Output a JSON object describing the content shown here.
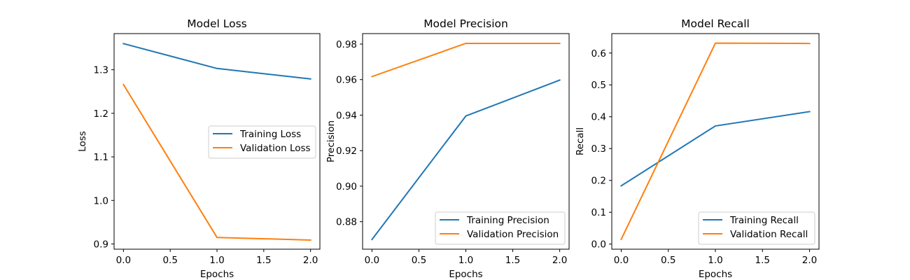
{
  "chart_data": [
    {
      "type": "line",
      "title": "Model Loss",
      "xlabel": "Epochs",
      "ylabel": "Loss",
      "x": [
        0,
        1,
        2
      ],
      "xlim": [
        -0.1,
        2.1
      ],
      "ylim": [
        0.888,
        1.383
      ],
      "xticks": [
        "0.0",
        "0.5",
        "1.0",
        "1.5",
        "2.0"
      ],
      "yticks": [
        "0.9",
        "1.0",
        "1.1",
        "1.2",
        "1.3"
      ],
      "legend_position": "center-right",
      "series": [
        {
          "name": "Training Loss",
          "color": "#1f77b4",
          "values": [
            1.36,
            1.303,
            1.279
          ]
        },
        {
          "name": "Validation Loss",
          "color": "#ff7f0e",
          "values": [
            1.266,
            0.915,
            0.909
          ]
        }
      ]
    },
    {
      "type": "line",
      "title": "Model Precision",
      "xlabel": "Epochs",
      "ylabel": "Precision",
      "x": [
        0,
        1,
        2
      ],
      "xlim": [
        -0.1,
        2.1
      ],
      "ylim": [
        0.8645,
        0.9859
      ],
      "xticks": [
        "0.0",
        "0.5",
        "1.0",
        "1.5",
        "2.0"
      ],
      "yticks": [
        "0.88",
        "0.90",
        "0.92",
        "0.94",
        "0.96",
        "0.98"
      ],
      "legend_position": "lower-right",
      "series": [
        {
          "name": "Training Precision",
          "color": "#1f77b4",
          "values": [
            0.87,
            0.9395,
            0.9597
          ]
        },
        {
          "name": "Validation Precision",
          "color": "#ff7f0e",
          "values": [
            0.9617,
            0.9804,
            0.9804
          ]
        }
      ]
    },
    {
      "type": "line",
      "title": "Model Recall",
      "xlabel": "Epochs",
      "ylabel": "Recall",
      "x": [
        0,
        1,
        2
      ],
      "xlim": [
        -0.1,
        2.1
      ],
      "ylim": [
        -0.016,
        0.661
      ],
      "xticks": [
        "0.0",
        "0.5",
        "1.0",
        "1.5",
        "2.0"
      ],
      "yticks": [
        "0.0",
        "0.1",
        "0.2",
        "0.3",
        "0.4",
        "0.5",
        "0.6"
      ],
      "legend_position": "lower-right",
      "series": [
        {
          "name": "Training Recall",
          "color": "#1f77b4",
          "values": [
            0.183,
            0.371,
            0.416
          ]
        },
        {
          "name": "Validation Recall",
          "color": "#ff7f0e",
          "values": [
            0.015,
            0.631,
            0.63
          ]
        }
      ]
    }
  ]
}
